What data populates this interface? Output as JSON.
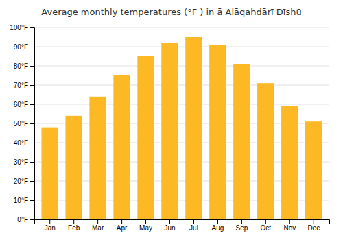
{
  "chart_data": {
    "type": "bar",
    "title": "Average monthly temperatures (°F ) in ā Alāqahdārī Dīshū",
    "categories": [
      "Jan",
      "Feb",
      "Mar",
      "Apr",
      "May",
      "Jun",
      "Jul",
      "Aug",
      "Sep",
      "Oct",
      "Nov",
      "Dec"
    ],
    "values": [
      48,
      54,
      64,
      75,
      85,
      92,
      95,
      91,
      81,
      71,
      59,
      51
    ],
    "color": "#FDB825",
    "ylim": [
      0,
      100
    ],
    "yticks": [
      {
        "value": 0,
        "label": "0°F"
      },
      {
        "value": 10,
        "label": "10°F"
      },
      {
        "value": 20,
        "label": "20°F"
      },
      {
        "value": 30,
        "label": "30°F"
      },
      {
        "value": 40,
        "label": "40°F"
      },
      {
        "value": 50,
        "label": "50°F"
      },
      {
        "value": 60,
        "label": "60°F"
      },
      {
        "value": 70,
        "label": "70°F"
      },
      {
        "value": 80,
        "label": "80°F"
      },
      {
        "value": 90,
        "label": "90°F"
      },
      {
        "value": 100,
        "label": "100°F"
      }
    ],
    "grid": true
  }
}
